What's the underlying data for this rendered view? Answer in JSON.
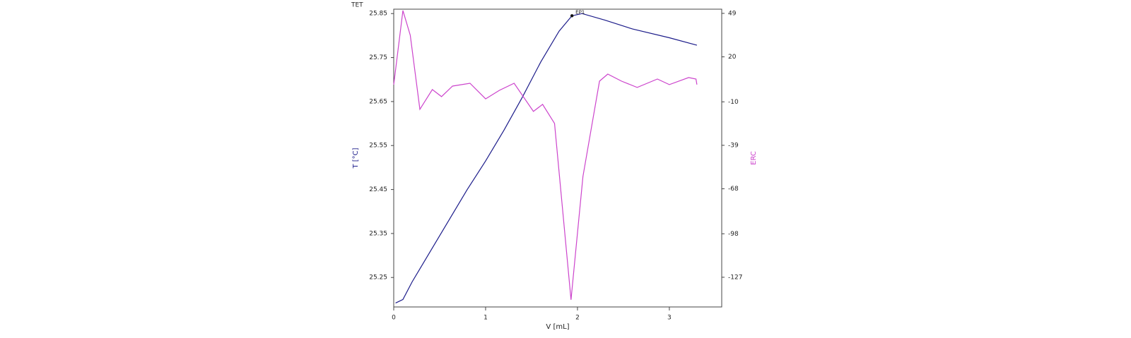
{
  "chart_data": {
    "type": "line",
    "title": "TET",
    "xlabel": "V [mL]",
    "ylabel": "T [°C]",
    "y2label": "ERC",
    "xlim": [
      0,
      3.57
    ],
    "xticks": [
      0,
      1,
      2,
      3
    ],
    "ylim": [
      25.183,
      25.86
    ],
    "yticks": [
      25.25,
      25.35,
      25.45,
      25.55,
      25.65,
      25.75,
      25.85
    ],
    "y2lim": [
      -146.8,
      51.8
    ],
    "y2ticks": [
      -127,
      -98,
      -68,
      -39,
      -10,
      20,
      49
    ],
    "series": [
      {
        "color": "#1c1c8a",
        "axis": "y",
        "x": [
          0.02,
          0.1,
          0.2,
          0.4,
          0.6,
          0.8,
          1.0,
          1.2,
          1.4,
          1.6,
          1.8,
          1.94,
          2.05,
          2.3,
          2.6,
          3.0,
          3.3
        ],
        "values": [
          25.192,
          25.2,
          25.24,
          25.31,
          25.38,
          25.45,
          25.515,
          25.585,
          25.66,
          25.74,
          25.81,
          25.845,
          25.85,
          25.835,
          25.815,
          25.795,
          25.778
        ]
      },
      {
        "color": "#cc44cc",
        "axis": "y2",
        "x": [
          0.0,
          0.1,
          0.18,
          0.285,
          0.42,
          0.52,
          0.64,
          0.83,
          1.0,
          1.15,
          1.31,
          1.52,
          1.62,
          1.75,
          1.93,
          2.06,
          2.24,
          2.33,
          2.48,
          2.65,
          2.87,
          3.0,
          3.21,
          3.29,
          3.3
        ],
        "values": [
          1.5,
          50.9,
          34.4,
          -15,
          -1.8,
          -6.5,
          0.5,
          2.4,
          -8,
          -2.3,
          2.4,
          -16.4,
          -11.7,
          -24.4,
          -142,
          -59.7,
          3.8,
          8.5,
          3.8,
          -0.4,
          5.2,
          1.5,
          6.2,
          5.2,
          1.5
        ]
      }
    ],
    "annotations": [
      {
        "text": "EP1",
        "x": 1.94,
        "y": 25.845
      }
    ]
  }
}
